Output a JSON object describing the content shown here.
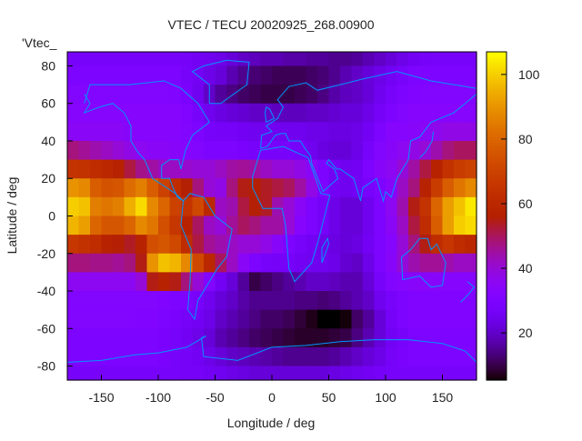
{
  "chart_data": {
    "type": "heatmap",
    "title": "VTEC / TECU 20020925_268.00900",
    "xlabel": "Longitude / deg",
    "ylabel": "Latitude / deg",
    "key_label": "'Vtec_",
    "xlim": [
      -180,
      180
    ],
    "ylim": [
      -87.5,
      87.5
    ],
    "xticks": [
      -150,
      -100,
      -50,
      0,
      50,
      100,
      150
    ],
    "yticks": [
      80,
      60,
      40,
      20,
      0,
      -20,
      -40,
      -60,
      -80
    ],
    "cbrange": [
      5.4,
      107
    ],
    "cbticks": [
      20,
      40,
      60,
      80,
      100
    ],
    "palette": "black-blue-violet-yellow",
    "coastline_color": "#0096ff",
    "x": [
      -175,
      -165,
      -155,
      -145,
      -135,
      -125,
      -115,
      -105,
      -95,
      -85,
      -75,
      -65,
      -55,
      -45,
      -35,
      -25,
      -15,
      -5,
      5,
      15,
      25,
      35,
      45,
      55,
      65,
      75,
      85,
      95,
      105,
      115,
      125,
      135,
      145,
      155,
      165,
      175
    ],
    "y": [
      85,
      75,
      65,
      55,
      45,
      35,
      25,
      15,
      5,
      -5,
      -15,
      -25,
      -35,
      -45,
      -55,
      -65,
      -75,
      -85
    ],
    "z": [
      [
        28,
        28,
        28,
        28,
        28,
        28,
        28,
        28,
        28,
        28,
        27,
        26,
        25,
        24,
        22,
        20,
        19,
        18,
        18,
        17,
        17,
        16,
        16,
        15,
        15,
        16,
        18,
        20,
        22,
        24,
        26,
        27,
        28,
        28,
        28,
        28
      ],
      [
        30,
        30,
        30,
        30,
        30,
        30,
        30,
        30,
        30,
        30,
        28,
        26,
        24,
        22,
        18,
        15,
        13,
        12,
        11,
        11,
        11,
        12,
        13,
        15,
        18,
        20,
        22,
        24,
        26,
        28,
        30,
        30,
        30,
        30,
        30,
        30
      ],
      [
        32,
        32,
        32,
        32,
        32,
        32,
        32,
        32,
        32,
        31,
        29,
        25,
        20,
        16,
        14,
        12,
        11,
        10,
        10,
        10,
        11,
        12,
        14,
        17,
        19,
        20,
        22,
        25,
        28,
        30,
        31,
        32,
        32,
        32,
        32,
        32
      ],
      [
        33,
        33,
        33,
        33,
        33,
        33,
        33,
        33,
        33,
        33,
        31,
        28,
        25,
        23,
        22,
        21,
        20,
        20,
        19,
        19,
        19,
        20,
        20,
        21,
        22,
        22,
        24,
        27,
        30,
        32,
        33,
        33,
        33,
        33,
        33,
        33
      ],
      [
        35,
        35,
        35,
        35,
        35,
        34,
        33,
        33,
        33,
        33,
        32,
        30,
        28,
        27,
        27,
        26,
        25,
        25,
        25,
        25,
        25,
        24,
        24,
        23,
        23,
        24,
        26,
        30,
        33,
        33,
        34,
        35,
        37,
        38,
        38,
        38
      ],
      [
        48,
        46,
        44,
        42,
        40,
        38,
        36,
        35,
        35,
        34,
        33,
        32,
        30,
        30,
        30,
        29,
        28,
        28,
        28,
        28,
        27,
        25,
        23,
        22,
        22,
        24,
        28,
        32,
        34,
        36,
        38,
        40,
        44,
        48,
        50,
        50
      ],
      [
        65,
        64,
        62,
        60,
        58,
        52,
        47,
        45,
        42,
        42,
        41,
        40,
        40,
        42,
        45,
        46,
        45,
        42,
        40,
        40,
        38,
        35,
        30,
        26,
        25,
        26,
        30,
        34,
        36,
        40,
        45,
        52,
        58,
        64,
        68,
        70
      ],
      [
        90,
        88,
        78,
        75,
        76,
        82,
        86,
        78,
        70,
        62,
        56,
        48,
        40,
        38,
        48,
        55,
        56,
        54,
        52,
        50,
        45,
        38,
        30,
        26,
        25,
        26,
        28,
        30,
        34,
        42,
        48,
        58,
        68,
        78,
        84,
        88
      ],
      [
        100,
        98,
        86,
        84,
        86,
        95,
        102,
        88,
        80,
        70,
        65,
        72,
        60,
        42,
        44,
        52,
        56,
        54,
        44,
        40,
        35,
        30,
        27,
        24,
        22,
        22,
        25,
        30,
        36,
        44,
        55,
        65,
        80,
        92,
        98,
        104
      ],
      [
        96,
        92,
        80,
        76,
        76,
        80,
        88,
        84,
        74,
        66,
        58,
        50,
        42,
        40,
        46,
        50,
        48,
        45,
        45,
        40,
        33,
        30,
        27,
        24,
        22,
        22,
        25,
        30,
        35,
        42,
        52,
        62,
        78,
        92,
        100,
        102
      ],
      [
        66,
        64,
        62,
        58,
        56,
        54,
        58,
        74,
        76,
        72,
        62,
        52,
        46,
        44,
        42,
        40,
        40,
        38,
        34,
        30,
        28,
        26,
        24,
        23,
        22,
        23,
        26,
        30,
        33,
        40,
        48,
        55,
        62,
        66,
        62,
        60
      ],
      [
        48,
        48,
        47,
        47,
        46,
        48,
        55,
        90,
        98,
        96,
        88,
        72,
        60,
        50,
        42,
        35,
        30,
        28,
        27,
        27,
        26,
        25,
        25,
        24,
        21,
        20,
        24,
        30,
        34,
        40,
        44,
        46,
        46,
        44,
        42,
        42
      ],
      [
        36,
        36,
        36,
        36,
        36,
        36,
        40,
        55,
        58,
        55,
        48,
        40,
        32,
        26,
        22,
        16,
        10,
        12,
        14,
        16,
        18,
        20,
        20,
        19,
        18,
        18,
        22,
        28,
        32,
        33,
        34,
        34,
        34,
        33,
        33,
        33
      ],
      [
        32,
        32,
        32,
        32,
        32,
        32,
        32,
        32,
        31,
        30,
        30,
        28,
        25,
        22,
        20,
        17,
        15,
        15,
        15,
        15,
        14,
        14,
        13,
        14,
        16,
        18,
        20,
        25,
        28,
        30,
        31,
        31,
        31,
        31,
        31,
        31
      ],
      [
        32,
        32,
        32,
        32,
        32,
        32,
        31,
        31,
        30,
        29,
        27,
        26,
        24,
        20,
        18,
        16,
        14,
        12,
        12,
        11,
        9,
        7,
        5,
        5,
        6,
        12,
        16,
        22,
        27,
        30,
        31,
        31,
        31,
        31,
        31,
        31
      ],
      [
        30,
        30,
        30,
        30,
        30,
        30,
        30,
        30,
        29,
        28,
        26,
        24,
        22,
        18,
        16,
        14,
        12,
        11,
        10,
        9,
        8,
        8,
        8,
        9,
        10,
        14,
        18,
        22,
        26,
        28,
        30,
        30,
        30,
        30,
        30,
        30
      ],
      [
        30,
        30,
        30,
        30,
        30,
        30,
        30,
        30,
        29,
        28,
        27,
        26,
        24,
        22,
        20,
        19,
        18,
        17,
        16,
        15,
        15,
        15,
        15,
        16,
        18,
        20,
        22,
        24,
        27,
        29,
        30,
        30,
        30,
        30,
        30,
        30
      ],
      [
        28,
        28,
        28,
        28,
        28,
        28,
        28,
        28,
        28,
        28,
        27,
        27,
        26,
        25,
        24,
        23,
        22,
        22,
        22,
        22,
        22,
        22,
        22,
        23,
        24,
        25,
        26,
        27,
        28,
        28,
        28,
        28,
        28,
        28,
        28,
        28
      ]
    ]
  }
}
